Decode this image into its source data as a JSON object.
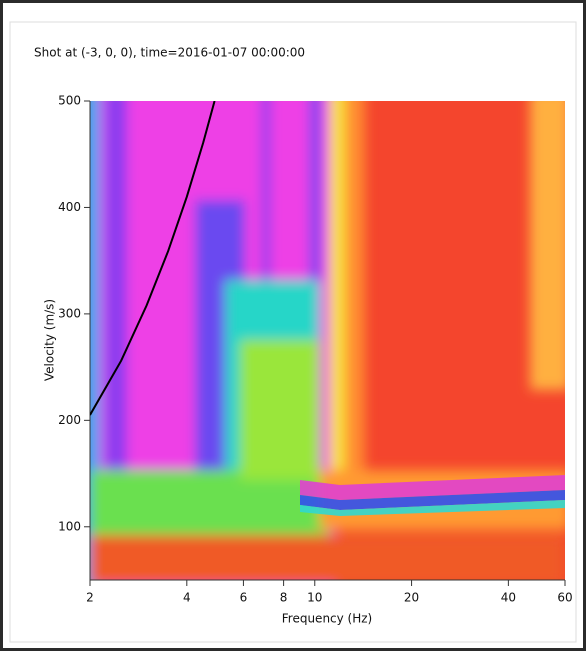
{
  "chart_data": {
    "type": "line",
    "title": "Shot at (-3, 0, 0), time=2016-01-07 00:00:00",
    "x_label": "Frequency (Hz)",
    "y_label": "Velocity (m/s)",
    "x_scale": "log",
    "xlim": [
      2,
      60
    ],
    "xticks": [
      2,
      4,
      6,
      8,
      10,
      20,
      40,
      60
    ],
    "ylim": [
      50,
      500
    ],
    "yticks": [
      100,
      200,
      300,
      400,
      500
    ],
    "series": [
      {
        "color": "#000000",
        "x": [
          2,
          2.5,
          3,
          3.5,
          4,
          4.5,
          4.88
        ],
        "values": [
          205,
          256,
          308,
          359,
          410,
          461,
          500
        ]
      }
    ]
  }
}
